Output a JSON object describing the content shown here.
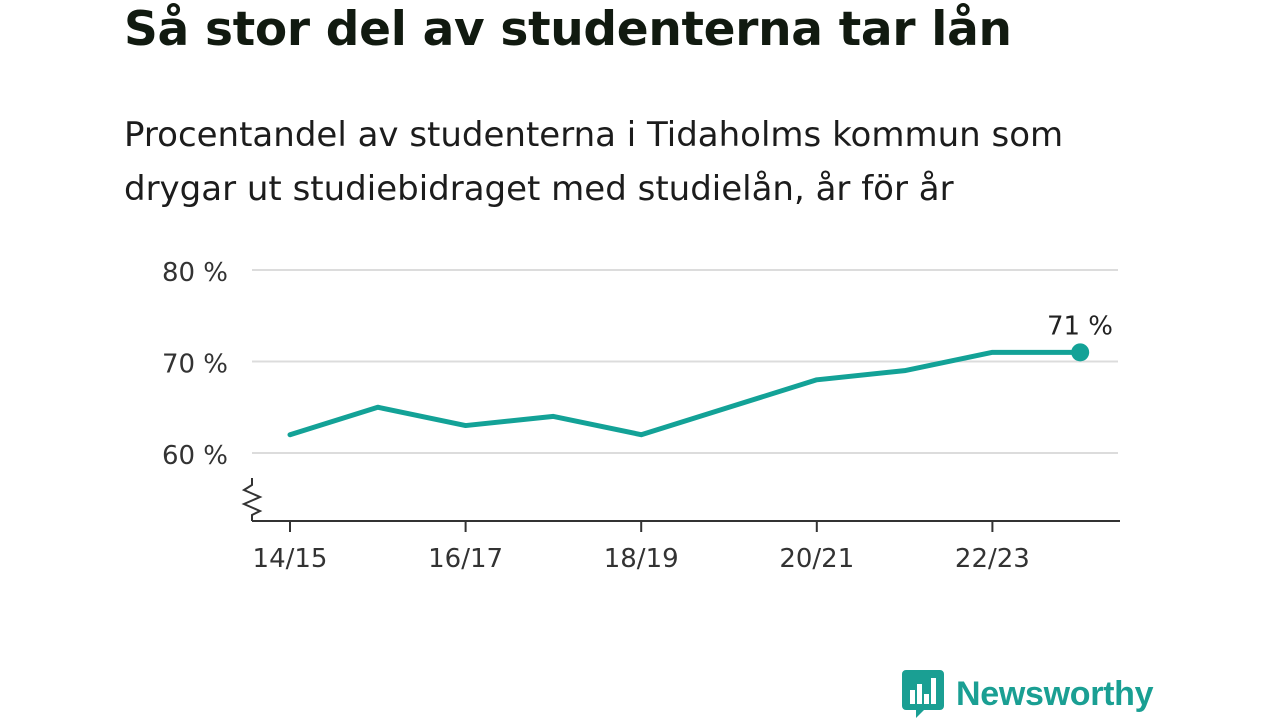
{
  "header": {
    "title": "Så stor del av studenterna tar lån",
    "subtitle": "Procentandel av studenterna i Tidaholms kommun som drygar ut studiebidraget med studielån, år för år"
  },
  "chart_data": {
    "type": "line",
    "categories": [
      "14/15",
      "15/16",
      "16/17",
      "17/18",
      "18/19",
      "19/20",
      "20/21",
      "21/22",
      "22/23",
      "23/24"
    ],
    "x_tick_labels": [
      "14/15",
      "16/17",
      "18/19",
      "20/21",
      "22/23"
    ],
    "series": [
      {
        "values": [
          62,
          65,
          63,
          64,
          62,
          65,
          68,
          69,
          71,
          71
        ],
        "color": "#13a297"
      }
    ],
    "y_ticks": [
      "80 %",
      "70 %",
      "60 %"
    ],
    "y_tick_values": [
      80,
      70,
      60
    ],
    "ylim": [
      53,
      80
    ],
    "last_value_label": "71 %",
    "axis_break": true,
    "grid": true
  },
  "brand": {
    "name": "Newsworthy",
    "color": "#1a9f93",
    "icon": "bar-chart-speech-bubble-icon"
  }
}
